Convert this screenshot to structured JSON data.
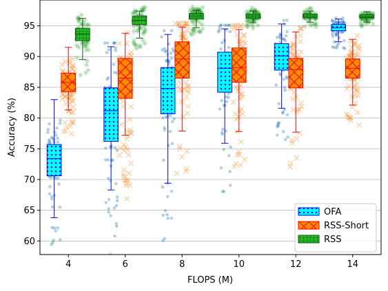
{
  "chart_data": {
    "type": "box",
    "title": "",
    "xlabel": "FLOPS (M)",
    "ylabel": "Accuracy (%)",
    "xlim": [
      3,
      15
    ],
    "ylim": [
      57.8,
      99.2
    ],
    "xticks": [
      4,
      6,
      8,
      10,
      12,
      14
    ],
    "yticks": [
      60,
      65,
      70,
      75,
      80,
      85,
      90,
      95
    ],
    "grid": "y",
    "legend_position": "lower-right",
    "categories": [
      4,
      6,
      8,
      10,
      12,
      14
    ],
    "series": [
      {
        "name": "OFA",
        "offset": -0.5,
        "face_color": "#00ffff",
        "edge_color": "#0000ff",
        "hatch": "dots",
        "scatter_color": "#1f77b4",
        "scatter_marker": "circle",
        "boxes": [
          {
            "x": 4,
            "whislo": 63.8,
            "q1": 70.6,
            "med": 73.4,
            "q3": 75.7,
            "whishi": 83.0
          },
          {
            "x": 6,
            "whislo": 68.3,
            "q1": 76.2,
            "med": 81.2,
            "q3": 84.9,
            "whishi": 91.6
          },
          {
            "x": 8,
            "whislo": 69.4,
            "q1": 80.7,
            "med": 84.8,
            "q3": 88.2,
            "whishi": 93.6
          },
          {
            "x": 10,
            "whislo": 75.9,
            "q1": 84.2,
            "med": 88.1,
            "q3": 90.7,
            "whishi": 94.5
          },
          {
            "x": 12,
            "whislo": 81.6,
            "q1": 87.8,
            "med": 90.1,
            "q3": 92.1,
            "whishi": 95.3
          },
          {
            "x": 14,
            "whislo": 92.4,
            "q1": 94.2,
            "med": 94.7,
            "q3": 95.2,
            "whishi": 96.1
          }
        ]
      },
      {
        "name": "RSS-Short",
        "offset": 0.0,
        "face_color": "#ff8c00",
        "edge_color": "#ff0000",
        "hatch": "cross",
        "scatter_color": "#ff7f0e",
        "scatter_marker": "x",
        "boxes": [
          {
            "x": 4,
            "whislo": 81.3,
            "q1": 84.3,
            "med": 85.8,
            "q3": 87.3,
            "whishi": 91.5
          },
          {
            "x": 6,
            "whislo": 77.2,
            "q1": 83.2,
            "med": 86.5,
            "q3": 89.7,
            "whishi": 93.8
          },
          {
            "x": 8,
            "whislo": 77.9,
            "q1": 86.5,
            "med": 89.6,
            "q3": 92.4,
            "whishi": 94.8
          },
          {
            "x": 10,
            "whislo": 77.8,
            "q1": 85.8,
            "med": 88.2,
            "q3": 91.4,
            "whishi": 94.4
          },
          {
            "x": 12,
            "whislo": 77.7,
            "q1": 84.9,
            "med": 87.9,
            "q3": 89.7,
            "whishi": 94.0
          },
          {
            "x": 14,
            "whislo": 82.1,
            "q1": 86.5,
            "med": 88.1,
            "q3": 89.6,
            "whishi": 92.8
          }
        ]
      },
      {
        "name": "RSS",
        "offset": 0.5,
        "face_color": "#22bb22",
        "edge_color": "#115511",
        "hatch": "grid",
        "scatter_color": "#2ca02c",
        "scatter_marker": "star",
        "boxes": [
          {
            "x": 4,
            "whislo": 89.5,
            "q1": 92.6,
            "med": 93.7,
            "q3": 94.6,
            "whishi": 96.2
          },
          {
            "x": 6,
            "whislo": 93.0,
            "q1": 95.2,
            "med": 95.9,
            "q3": 96.6,
            "whishi": 97.4
          },
          {
            "x": 8,
            "whislo": 94.7,
            "q1": 96.1,
            "med": 96.6,
            "q3": 97.0,
            "whishi": 97.5
          },
          {
            "x": 10,
            "whislo": 95.5,
            "q1": 96.2,
            "med": 96.6,
            "q3": 96.9,
            "whishi": 97.4
          },
          {
            "x": 12,
            "whislo": 95.6,
            "q1": 96.3,
            "med": 96.6,
            "q3": 96.9,
            "whishi": 97.4
          },
          {
            "x": 14,
            "whislo": 95.6,
            "q1": 96.3,
            "med": 96.5,
            "q3": 96.8,
            "whishi": 97.3
          }
        ]
      }
    ]
  }
}
